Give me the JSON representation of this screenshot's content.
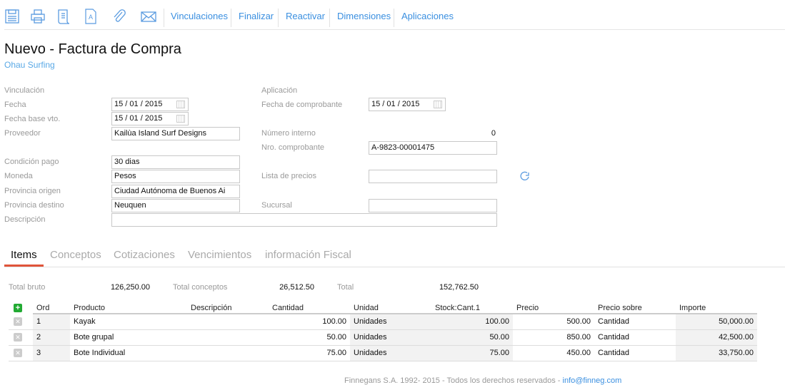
{
  "toolbar": {
    "icons": [
      "save-icon",
      "print-icon",
      "scroll-icon",
      "document-icon",
      "attachment-icon",
      "mail-icon"
    ],
    "links": [
      "Vinculaciones",
      "Finalizar",
      "Reactivar",
      "Dimensiones",
      "Aplicaciones"
    ]
  },
  "header": {
    "title": "Nuevo - Factura de Compra",
    "subtitle": "Ohau Surfing"
  },
  "form": {
    "vinculacion": "Vinculación",
    "aplicacion": "Aplicación",
    "fecha": {
      "label": "Fecha",
      "day": "15",
      "month": "01",
      "year": "2015"
    },
    "fecha_base": {
      "label": "Fecha base vto.",
      "day": "15",
      "month": "01",
      "year": "2015"
    },
    "fecha_comprobante": {
      "label": "Fecha de comprobante",
      "day": "15",
      "month": "01",
      "year": "2015"
    },
    "proveedor": {
      "label": "Proveedor",
      "value": "Kailùa Island Surf Designs"
    },
    "numero_interno": {
      "label": "Número interno",
      "value": "0"
    },
    "nro_comprobante": {
      "label": "Nro. comprobante",
      "value": "A-9823-00001475"
    },
    "condicion_pago": {
      "label": "Condición pago",
      "value": "30 dias"
    },
    "moneda": {
      "label": "Moneda",
      "value": "Pesos"
    },
    "lista_precios": {
      "label": "Lista de precios",
      "value": ""
    },
    "provincia_origen": {
      "label": "Provincia origen",
      "value": "Ciudad Autónoma de Buenos Ai"
    },
    "provincia_destino": {
      "label": "Provincia destino",
      "value": "Neuquen"
    },
    "sucursal": {
      "label": "Sucursal",
      "value": ""
    },
    "descripcion": {
      "label": "Descripción",
      "value": ""
    }
  },
  "tabs": [
    {
      "label": "Items",
      "active": true
    },
    {
      "label": "Conceptos"
    },
    {
      "label": "Cotizaciones"
    },
    {
      "label": "Vencimientos"
    },
    {
      "label": "información Fiscal"
    }
  ],
  "totals": {
    "bruto_label": "Total bruto",
    "bruto": "126,250.00",
    "conceptos_label": "Total conceptos",
    "conceptos": "26,512.50",
    "total_label": "Total",
    "total": "152,762.50"
  },
  "table": {
    "headers": [
      "Ord",
      "Producto",
      "Descripción",
      "Cantidad",
      "Unidad",
      "Stock:Cant.1",
      "Precio",
      "Precio sobre",
      "Importe"
    ],
    "rows": [
      [
        "1",
        "Kayak",
        "",
        "100.00",
        "Unidades",
        "100.00",
        "500.00",
        "Cantidad",
        "50,000.00"
      ],
      [
        "2",
        "Bote grupal",
        "",
        "50.00",
        "Unidades",
        "50.00",
        "850.00",
        "Cantidad",
        "42,500.00"
      ],
      [
        "3",
        "Bote Individual",
        "",
        "75.00",
        "Unidades",
        "75.00",
        "450.00",
        "Cantidad",
        "33,750.00"
      ]
    ]
  },
  "footer": {
    "text": "Finnegans S.A. 1992- 2015 - Todos los derechos reservados - ",
    "email": "info@finneg.com"
  },
  "colors": {
    "accent": "#3a8fe0",
    "tab_active": "#e0543a",
    "add": "#22aa33"
  }
}
